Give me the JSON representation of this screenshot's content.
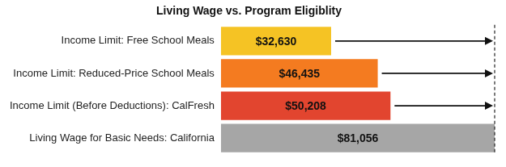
{
  "chart_data": {
    "type": "bar",
    "title": "Living Wage vs. Program Eligiblity",
    "orientation": "horizontal",
    "categories": [
      "Income Limit: Free School Meals",
      "Income Limit: Reduced-Price School Meals",
      "Income Limit (Before Deductions): CalFresh",
      "Living Wage for Basic Needs: California"
    ],
    "values": [
      32630,
      46435,
      50208,
      81056
    ],
    "value_labels": [
      "$32,630",
      "$46,435",
      "$50,208",
      "$81,056"
    ],
    "colors": [
      "#f5c324",
      "#f47b20",
      "#e2452f",
      "#a6a6a6"
    ],
    "xlim": [
      0,
      81056
    ],
    "tick_labels": "y",
    "grid": false,
    "data_labels": true
  }
}
